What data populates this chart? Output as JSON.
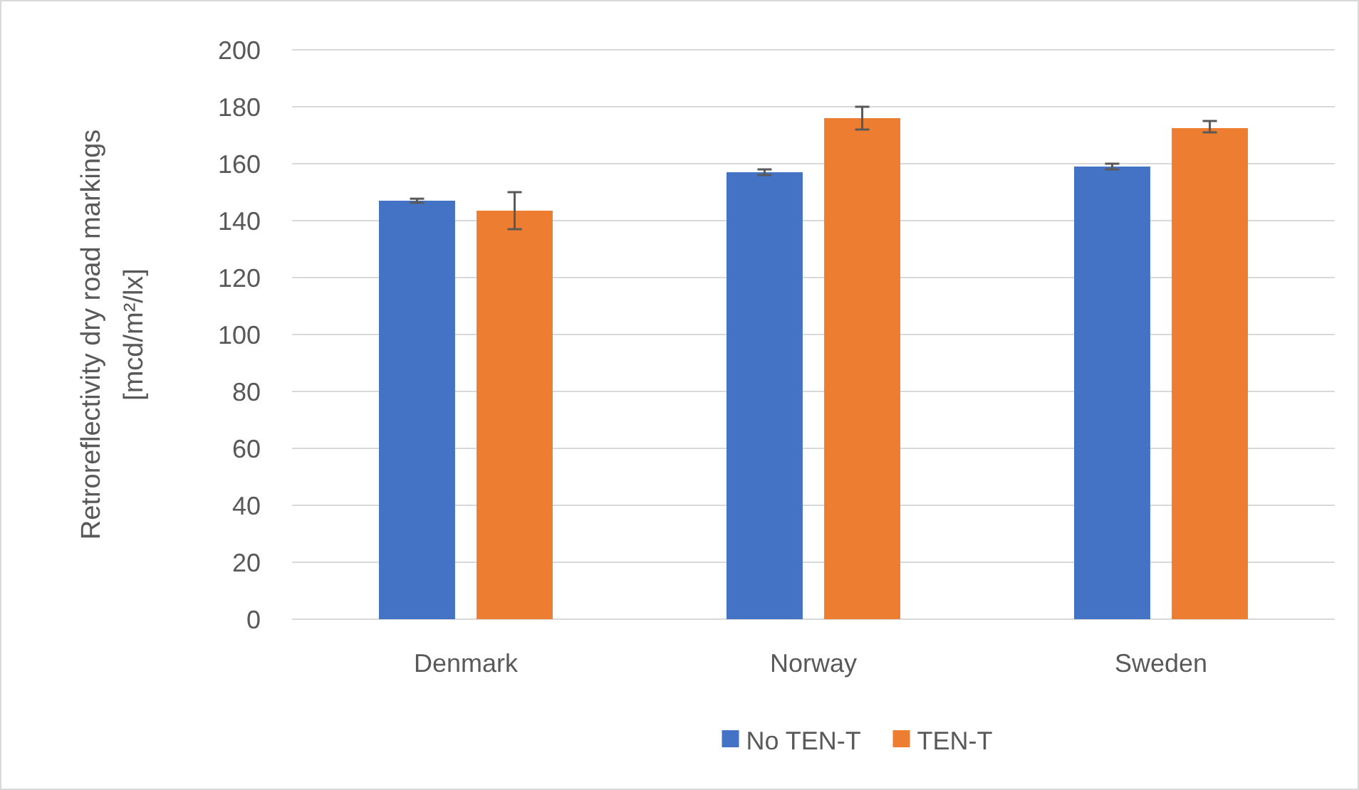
{
  "chart_data": {
    "type": "bar",
    "ylabel": "Retroreflectivity dry road markings\n[mcd/m²/lx]",
    "categories": [
      "Denmark",
      "Norway",
      "Sweden"
    ],
    "series": [
      {
        "name": "No TEN-T",
        "color": "#4472c4",
        "values": [
          147,
          157,
          159
        ],
        "errors": [
          0.7,
          1,
          1
        ]
      },
      {
        "name": "TEN-T",
        "color": "#ed7d31",
        "values": [
          143.5,
          176,
          172.5
        ],
        "errors": [
          [
            137,
            150
          ],
          [
            172,
            180
          ],
          [
            171,
            175
          ]
        ]
      }
    ],
    "ylim": [
      0,
      200
    ],
    "yticks": [
      0,
      20,
      40,
      60,
      80,
      100,
      120,
      140,
      160,
      180,
      200
    ],
    "grid": "y",
    "legend": "bottom"
  }
}
